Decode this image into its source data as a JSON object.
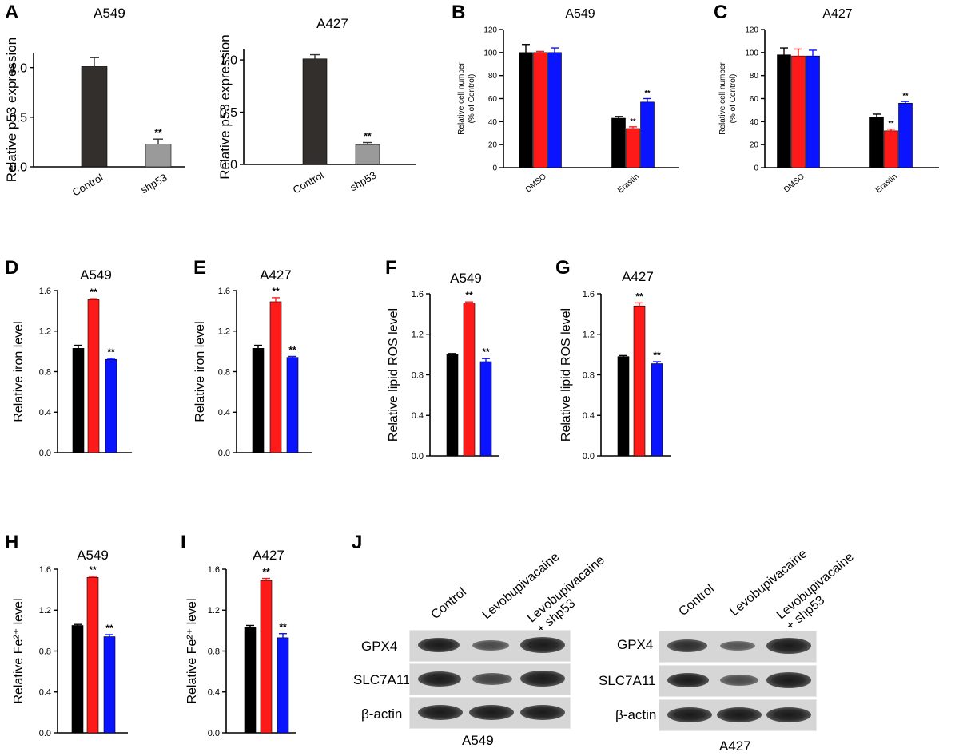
{
  "panel_letters": [
    "A",
    "B",
    "C",
    "D",
    "E",
    "F",
    "G",
    "H",
    "I",
    "J"
  ],
  "chart_data": [
    {
      "id": "A1",
      "type": "bar",
      "title": "A549",
      "categories": [
        "Control",
        "shp53"
      ],
      "values": [
        1.01,
        0.23
      ],
      "errors": [
        0.09,
        0.05
      ],
      "colors": [
        "#332f2c",
        "#9a9a9a"
      ],
      "significance": [
        "",
        "**"
      ],
      "ylabel": "Relative p53 expression",
      "ylim": [
        0,
        1.15
      ],
      "yticks": [
        "0.0",
        "0.5",
        "1.0"
      ]
    },
    {
      "id": "A2",
      "type": "bar",
      "title": "A427",
      "categories": [
        "Control",
        "shp53"
      ],
      "values": [
        1.01,
        0.19
      ],
      "errors": [
        0.04,
        0.02
      ],
      "colors": [
        "#332f2c",
        "#9a9a9a"
      ],
      "significance": [
        "",
        "**"
      ],
      "ylabel": "Relative p53 expression",
      "ylim": [
        0,
        1.1
      ],
      "yticks": [
        "0.0",
        "0.5",
        "1.0"
      ]
    },
    {
      "id": "B",
      "type": "bar",
      "title": "A549",
      "categories": [
        "DMSO",
        "Erastin"
      ],
      "series": [
        {
          "values": [
            100,
            43
          ],
          "errors": [
            7,
            1.5
          ],
          "color": "#000000"
        },
        {
          "values": [
            100,
            34
          ],
          "errors": [
            1,
            1.5
          ],
          "color": "#ff1a1a"
        },
        {
          "values": [
            100,
            57
          ],
          "errors": [
            4,
            3
          ],
          "color": "#0a14ff"
        }
      ],
      "significance": [
        [
          "",
          "",
          ""
        ],
        [
          "",
          "**",
          "**"
        ]
      ],
      "ylabel": "Relative cell number",
      "ylabel2": "(% of Control)",
      "ylim": [
        0,
        120
      ],
      "yticks": [
        "0",
        "20",
        "40",
        "60",
        "80",
        "100",
        "120"
      ]
    },
    {
      "id": "C",
      "type": "bar",
      "title": "A427",
      "categories": [
        "DMSO",
        "Erastin"
      ],
      "series": [
        {
          "values": [
            98,
            44
          ],
          "errors": [
            6,
            2.5
          ],
          "color": "#000000"
        },
        {
          "values": [
            97,
            32
          ],
          "errors": [
            6,
            1.5
          ],
          "color": "#ff1a1a"
        },
        {
          "values": [
            97,
            56
          ],
          "errors": [
            5,
            1.5
          ],
          "color": "#0a14ff"
        }
      ],
      "significance": [
        [
          "",
          "",
          ""
        ],
        [
          "",
          "**",
          "**"
        ]
      ],
      "ylabel": "Relative cell number",
      "ylabel2": "(% of Control)",
      "ylim": [
        0,
        120
      ],
      "yticks": [
        "0",
        "20",
        "40",
        "60",
        "80",
        "100",
        "120"
      ]
    },
    {
      "id": "D",
      "type": "bar",
      "title": "A549",
      "values": [
        1.03,
        1.51,
        0.92
      ],
      "errors": [
        0.03,
        0.01,
        0.01
      ],
      "colors": [
        "#000000",
        "#ff1a1a",
        "#0a14ff"
      ],
      "significance": [
        "",
        "**",
        "**"
      ],
      "ylabel": "Relative iron level",
      "ylim": [
        0,
        1.6
      ],
      "yticks": [
        "0.0",
        "0.4",
        "0.8",
        "1.2",
        "1.6"
      ]
    },
    {
      "id": "E",
      "type": "bar",
      "title": "A427",
      "values": [
        1.03,
        1.49,
        0.94
      ],
      "errors": [
        0.03,
        0.04,
        0.01
      ],
      "colors": [
        "#000000",
        "#ff1a1a",
        "#0a14ff"
      ],
      "significance": [
        "",
        "**",
        "**"
      ],
      "ylabel": "Relative iron level",
      "ylim": [
        0,
        1.6
      ],
      "yticks": [
        "0.0",
        "0.4",
        "0.8",
        "1.2",
        "1.6"
      ]
    },
    {
      "id": "F",
      "type": "bar",
      "title": "A549",
      "values": [
        1.0,
        1.51,
        0.93
      ],
      "errors": [
        0.01,
        0.01,
        0.03
      ],
      "colors": [
        "#000000",
        "#ff1a1a",
        "#0a14ff"
      ],
      "significance": [
        "",
        "**",
        "**"
      ],
      "ylabel": "Relative lipid ROS level",
      "ylim": [
        0,
        1.6
      ],
      "yticks": [
        "0.0",
        "0.4",
        "0.8",
        "1.2",
        "1.6"
      ]
    },
    {
      "id": "G",
      "type": "bar",
      "title": "A427",
      "values": [
        0.98,
        1.48,
        0.91
      ],
      "errors": [
        0.01,
        0.03,
        0.02
      ],
      "colors": [
        "#000000",
        "#ff1a1a",
        "#0a14ff"
      ],
      "significance": [
        "",
        "**",
        "**"
      ],
      "ylabel": "Relative lipid ROS level",
      "ylim": [
        0,
        1.6
      ],
      "yticks": [
        "0.0",
        "0.4",
        "0.8",
        "1.2",
        "1.6"
      ]
    },
    {
      "id": "H",
      "type": "bar",
      "title": "A549",
      "values": [
        1.05,
        1.52,
        0.94
      ],
      "errors": [
        0.01,
        0.01,
        0.02
      ],
      "colors": [
        "#000000",
        "#ff1a1a",
        "#0a14ff"
      ],
      "significance": [
        "",
        "**",
        "**"
      ],
      "ylabel": "Relative Fe²⁺ level",
      "ylim": [
        0,
        1.6
      ],
      "yticks": [
        "0.0",
        "0.4",
        "0.8",
        "1.2",
        "1.6"
      ]
    },
    {
      "id": "I",
      "type": "bar",
      "title": "A427",
      "values": [
        1.03,
        1.49,
        0.93
      ],
      "errors": [
        0.02,
        0.02,
        0.04
      ],
      "colors": [
        "#000000",
        "#ff1a1a",
        "#0a14ff"
      ],
      "significance": [
        "",
        "**",
        "**"
      ],
      "ylabel": "Relative Fe²⁺ level",
      "ylim": [
        0,
        1.6
      ],
      "yticks": [
        "0.0",
        "0.4",
        "0.8",
        "1.2",
        "1.6"
      ]
    }
  ],
  "western_blot": {
    "lanes": [
      "Control",
      "Levobupivacaine",
      "Levobupivacaine\n+ shp53"
    ],
    "blots": [
      {
        "caption": "A549",
        "proteins": [
          {
            "name": "GPX4",
            "intensity": [
              1.0,
              0.55,
              1.0
            ]
          },
          {
            "name": "SLC7A11",
            "intensity": [
              1.0,
              0.65,
              1.0
            ]
          },
          {
            "name": "β-actin",
            "intensity": [
              1.0,
              1.0,
              1.0
            ]
          }
        ]
      },
      {
        "caption": "A427",
        "proteins": [
          {
            "name": "GPX4",
            "intensity": [
              0.85,
              0.5,
              1.0
            ]
          },
          {
            "name": "SLC7A11",
            "intensity": [
              0.9,
              0.55,
              1.0
            ]
          },
          {
            "name": "β-actin",
            "intensity": [
              1.0,
              1.0,
              1.0
            ]
          }
        ]
      }
    ]
  }
}
